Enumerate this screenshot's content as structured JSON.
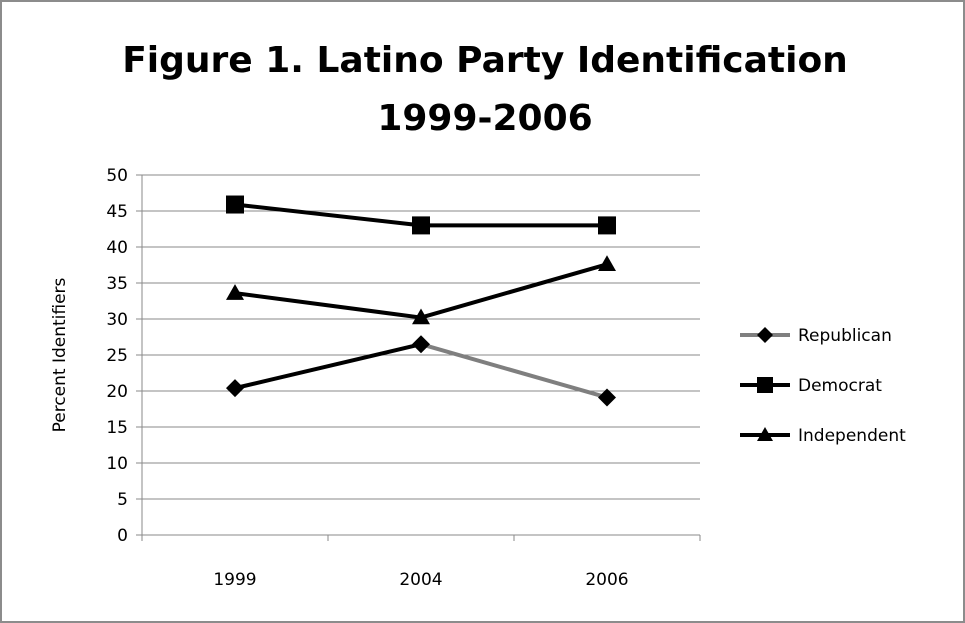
{
  "chart_data": {
    "type": "line",
    "title": "Figure 1. Latino Party Identification",
    "subtitle": "1999-2006",
    "xlabel": "",
    "ylabel": "Percent Identifiers",
    "categories": [
      "1999",
      "2004",
      "2006"
    ],
    "ylim": [
      0,
      50
    ],
    "yticks": [
      0,
      5,
      10,
      15,
      20,
      25,
      30,
      35,
      40,
      45,
      50
    ],
    "grid": true,
    "legend_position": "right",
    "series": [
      {
        "name": "Republican",
        "values": [
          20.4,
          26.5,
          19.1
        ],
        "marker": "diamond",
        "color": "#000000",
        "segment_colors": [
          "#000000",
          "#7f7f7f"
        ]
      },
      {
        "name": "Democrat",
        "values": [
          45.9,
          43.0,
          43.0
        ],
        "marker": "square",
        "color": "#000000"
      },
      {
        "name": "Independent",
        "values": [
          33.6,
          30.2,
          37.6
        ],
        "marker": "triangle",
        "color": "#000000"
      }
    ]
  }
}
